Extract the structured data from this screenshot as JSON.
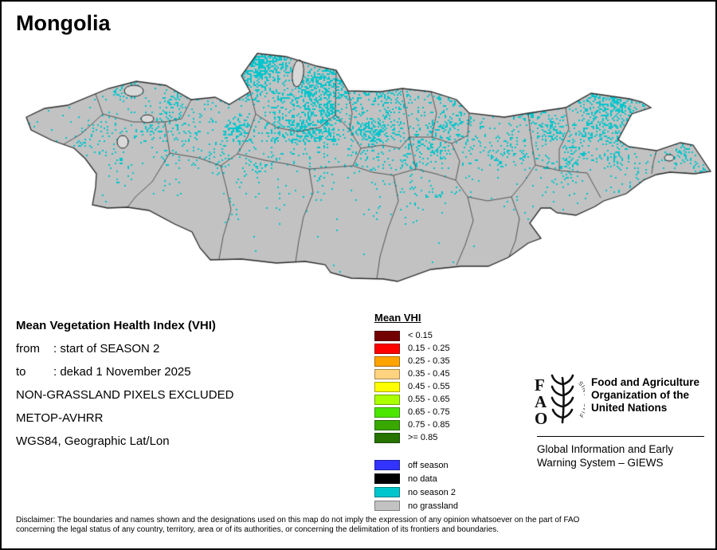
{
  "title": "Mongolia",
  "info": {
    "heading": "Mean Vegetation Health Index (VHI)",
    "from_label": "from",
    "from_value": ": start of SEASON 2",
    "to_label": "to",
    "to_value": ": dekad 1 November 2025",
    "line_excluded": "NON-GRASSLAND PIXELS EXCLUDED",
    "line_sensor": "METOP-AVHRR",
    "line_projection": "WGS84, Geographic Lat/Lon"
  },
  "legend": {
    "title": "Mean VHI",
    "classes": [
      {
        "label": "< 0.15",
        "color": "#730000"
      },
      {
        "label": "0.15 - 0.25",
        "color": "#ff0000"
      },
      {
        "label": "0.25 - 0.35",
        "color": "#ffa300"
      },
      {
        "label": "0.35 - 0.45",
        "color": "#ffd37f"
      },
      {
        "label": "0.45 - 0.55",
        "color": "#ffff00"
      },
      {
        "label": "0.55 - 0.65",
        "color": "#aaff00"
      },
      {
        "label": "0.65 - 0.75",
        "color": "#4ce600"
      },
      {
        "label": "0.75 - 0.85",
        "color": "#38a800"
      },
      {
        "label": ">= 0.85",
        "color": "#267300"
      }
    ],
    "special_classes": [
      {
        "label": "off season",
        "color": "#3333ff"
      },
      {
        "label": "no data",
        "color": "#000000"
      },
      {
        "label": "no season 2",
        "color": "#00c5cc"
      },
      {
        "label": "no grassland",
        "color": "#c2c2c2"
      }
    ]
  },
  "footer": {
    "fao_logo_text": "FAO",
    "fiat_panis": "FIAT PANIS",
    "fao_name": "Food and Agriculture\nOrganization of the\nUnited Nations",
    "giews": "Global Information and Early\nWarning System – GIEWS"
  },
  "disclaimer": "Disclaimer: The boundaries and names shown and the designations used on this map do not imply the expression of any opinion whatsoever on the part of FAO\nconcerning the legal status of any country, territory, area or of its authorities, or concerning the delimitation of its frontiers and boundaries.",
  "map": {
    "region_name": "Mongolia",
    "colors": {
      "land": "#c2c2c2",
      "no_season2": "#00c5cc",
      "admin_border": "#555555",
      "country_border": "#2a2a2a",
      "lake_fill": "#d8d8d8"
    }
  }
}
